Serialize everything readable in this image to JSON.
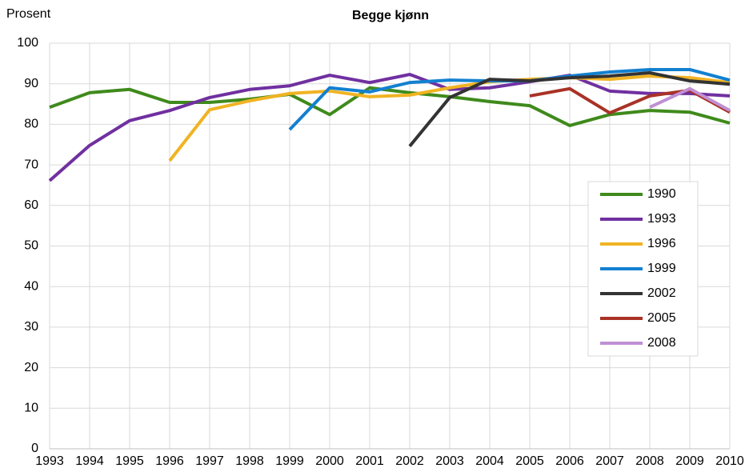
{
  "chart_data": {
    "type": "line",
    "title": "Begge kjønn",
    "y_label": "Prosent",
    "x": [
      1993,
      1994,
      1995,
      1996,
      1997,
      1998,
      1999,
      2000,
      2001,
      2002,
      2003,
      2004,
      2005,
      2006,
      2007,
      2008,
      2009,
      2010
    ],
    "xlim": [
      1993,
      2010
    ],
    "xticks": [
      1993,
      1994,
      1995,
      1996,
      1997,
      1998,
      1999,
      2000,
      2001,
      2002,
      2003,
      2004,
      2005,
      2006,
      2007,
      2008,
      2009,
      2010
    ],
    "ylim": [
      0,
      100
    ],
    "yticks": [
      0,
      10,
      20,
      30,
      40,
      50,
      60,
      70,
      80,
      90,
      100
    ],
    "grid": true,
    "legend": "right",
    "series": [
      {
        "name": "1990",
        "color": "#3f8a1c",
        "values": [
          84.2,
          87.8,
          88.6,
          85.4,
          85.4,
          86.2,
          87.4,
          82.4,
          89,
          87.8,
          86.8,
          85.6,
          84.6,
          79.7,
          82.4,
          83.4,
          83,
          80.3
        ]
      },
      {
        "name": "1993",
        "color": "#7030a0",
        "values": [
          66.1,
          74.8,
          80.9,
          83.4,
          86.6,
          88.6,
          89.5,
          92.1,
          90.3,
          92.3,
          88.6,
          89,
          90.5,
          92.1,
          88.2,
          87.6,
          87.6,
          87
        ]
      },
      {
        "name": "1996",
        "color": "#f0b323",
        "values": [
          null,
          null,
          null,
          71,
          83.6,
          85.8,
          87.6,
          88.2,
          86.8,
          87.2,
          89,
          90.5,
          91.1,
          91.5,
          91.1,
          91.9,
          91.5,
          90.3
        ]
      },
      {
        "name": "1999",
        "color": "#1380d0",
        "values": [
          null,
          null,
          null,
          null,
          null,
          null,
          78.7,
          89,
          88,
          90.3,
          90.9,
          90.7,
          90.7,
          91.9,
          92.9,
          93.5,
          93.5,
          90.9
        ]
      },
      {
        "name": "2002",
        "color": "#333333",
        "values": [
          null,
          null,
          null,
          null,
          null,
          null,
          null,
          null,
          null,
          74.6,
          86.6,
          91.1,
          90.7,
          91.5,
          91.9,
          92.7,
          90.7,
          89.9
        ]
      },
      {
        "name": "2005",
        "color": "#a93226",
        "values": [
          null,
          null,
          null,
          null,
          null,
          null,
          null,
          null,
          null,
          null,
          null,
          null,
          87,
          88.8,
          82.8,
          87,
          88.4,
          83
        ]
      },
      {
        "name": "2008",
        "color": "#c08fd3",
        "values": [
          null,
          null,
          null,
          null,
          null,
          null,
          null,
          null,
          null,
          null,
          null,
          null,
          null,
          null,
          null,
          84.2,
          88.8,
          83.4
        ]
      }
    ]
  }
}
